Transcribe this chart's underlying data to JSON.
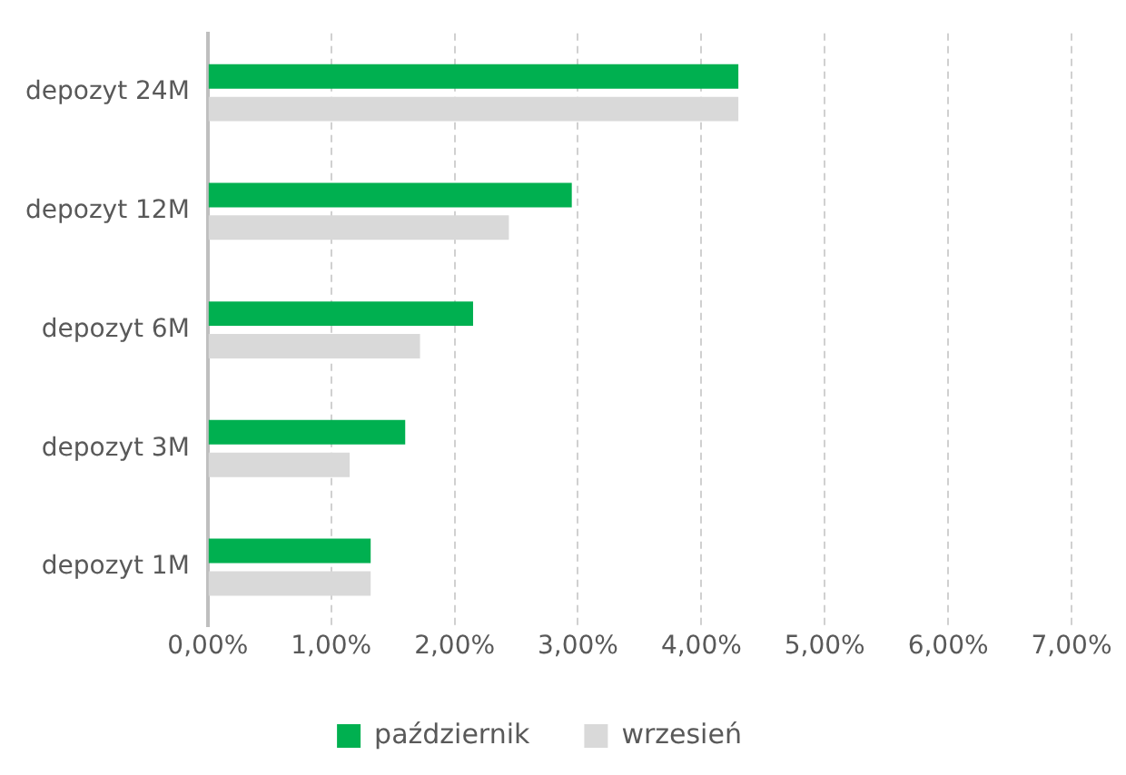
{
  "chart_data": {
    "type": "bar",
    "orientation": "horizontal",
    "categories": [
      "depozyt 24M",
      "depozyt 12M",
      "depozyt 6M",
      "depozyt 3M",
      "depozyt 1M"
    ],
    "series": [
      {
        "name": "październik",
        "color": "#00b050",
        "values": [
          4.3,
          2.95,
          2.15,
          1.6,
          1.32
        ]
      },
      {
        "name": "wrzesień",
        "color": "#d9d9d9",
        "values": [
          4.3,
          2.44,
          1.72,
          1.15,
          1.32
        ]
      }
    ],
    "xlim": [
      0,
      7
    ],
    "xticks": [
      {
        "value": 0,
        "label": "0,00%"
      },
      {
        "value": 1,
        "label": "1,00%"
      },
      {
        "value": 2,
        "label": "2,00%"
      },
      {
        "value": 3,
        "label": "3,00%"
      },
      {
        "value": 4,
        "label": "4,00%"
      },
      {
        "value": 5,
        "label": "5,00%"
      },
      {
        "value": 6,
        "label": "6,00%"
      },
      {
        "value": 7,
        "label": "7,00%"
      }
    ],
    "grid": "x",
    "legend": "bottom"
  }
}
